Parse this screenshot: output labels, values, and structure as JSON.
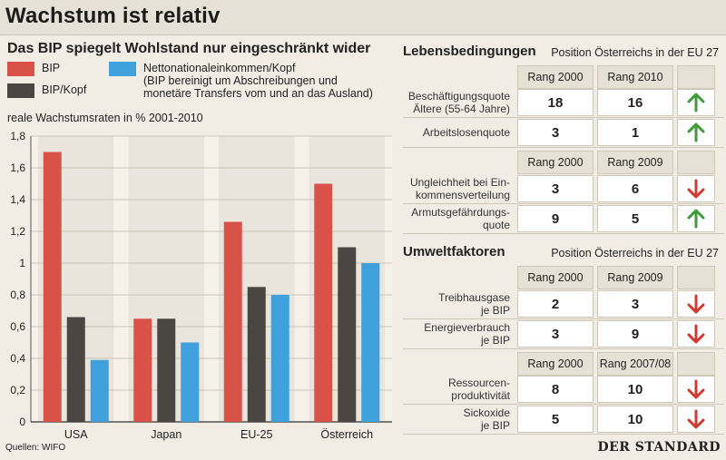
{
  "title": "Wachstum ist relativ",
  "chart_data": {
    "type": "bar",
    "title": "Das BIP spiegelt Wohlstand nur eingeschränkt wider",
    "ylabel": "reale Wachstumsraten in % 2001-2010",
    "categories": [
      "USA",
      "Japan",
      "EU-25",
      "Österreich"
    ],
    "series": [
      {
        "name": "BIP",
        "color": "#d9524a",
        "values": [
          1.7,
          0.65,
          1.26,
          1.5
        ]
      },
      {
        "name": "BIP/Kopf",
        "color": "#4a4642",
        "values": [
          0.66,
          0.65,
          0.85,
          1.1
        ]
      },
      {
        "name": "Nettonationaleinkommen/Kopf (BIP bereinigt um Abschreibungen und monetäre Transfers vom und an das Ausland)",
        "color": "#3fa0db",
        "values": [
          0.39,
          0.5,
          0.8,
          1.0
        ]
      }
    ],
    "ylim": [
      0,
      1.8
    ],
    "yticks": [
      "0",
      "0,2",
      "0,4",
      "0,6",
      "0,8",
      "1",
      "1,2",
      "1,4",
      "1,6",
      "1,8"
    ]
  },
  "legend": {
    "bip": "BIP",
    "bip_kopf": "BIP/Kopf",
    "nni_line1": "Nettonationaleinkommen/Kopf",
    "nni_line2": "(BIP bereinigt um Abschreibungen und",
    "nni_line3": "monetäre Transfers vom und an das Ausland)"
  },
  "lebensbedingungen": {
    "title": "Lebensbedingungen",
    "subtitle": "Position Österreichs in der EU 27",
    "header1": [
      "Rang 2000",
      "Rang 2010"
    ],
    "header2": [
      "Rang 2000",
      "Rang 2009"
    ],
    "rows": [
      {
        "label1": "Beschäftigungsquote",
        "label2": "Ältere (55-64 Jahre)",
        "a": "18",
        "b": "16",
        "trend": "up"
      },
      {
        "label1": "Arbeitslosenquote",
        "label2": "",
        "a": "3",
        "b": "1",
        "trend": "up"
      },
      {
        "label1": "Ungleichheit bei Ein-",
        "label2": "kommensverteilung",
        "a": "3",
        "b": "6",
        "trend": "down"
      },
      {
        "label1": "Armutsgefährdungs-",
        "label2": "quote",
        "a": "9",
        "b": "5",
        "trend": "up"
      }
    ]
  },
  "umweltfaktoren": {
    "title": "Umweltfaktoren",
    "subtitle": "Position Österreichs in der EU 27",
    "header1": [
      "Rang 2000",
      "Rang 2009"
    ],
    "header2": [
      "Rang 2000",
      "Rang 2007/08"
    ],
    "rows": [
      {
        "label1": "Treibhausgase",
        "label2": "je BIP",
        "a": "2",
        "b": "3",
        "trend": "down"
      },
      {
        "label1": "Energieverbrauch",
        "label2": "je BIP",
        "a": "3",
        "b": "9",
        "trend": "down"
      },
      {
        "label1": "Ressourcen-",
        "label2": "produktivität",
        "a": "8",
        "b": "10",
        "trend": "down"
      },
      {
        "label1": "Sickoxide",
        "label2": "je BIP",
        "a": "5",
        "b": "10",
        "trend": "down"
      }
    ]
  },
  "colors": {
    "up": "#3f9a3a",
    "down": "#d13a2f"
  },
  "footer": {
    "source": "Quellen: WIFO",
    "brand": "DER STANDARD"
  }
}
